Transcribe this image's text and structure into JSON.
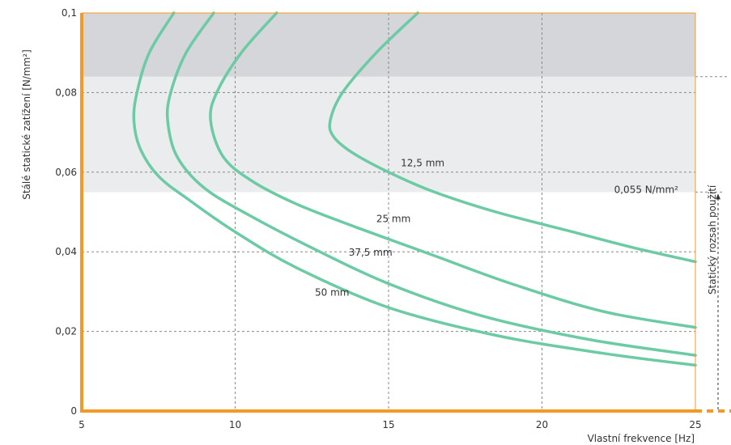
{
  "chart_data": {
    "type": "line",
    "xlabel": "Vlastní frekvence [Hz]",
    "ylabel": "Stálé statické zatížení [N/mm²]",
    "xlim": [
      5,
      25
    ],
    "ylim": [
      0,
      0.1
    ],
    "xticks": [
      {
        "value": 5,
        "label": "5"
      },
      {
        "value": 10,
        "label": "10"
      },
      {
        "value": 15,
        "label": "15"
      },
      {
        "value": 20,
        "label": "20"
      },
      {
        "value": 25,
        "label": "25"
      }
    ],
    "yticks": [
      {
        "value": 0,
        "label": "0"
      },
      {
        "value": 0.02,
        "label": "0,02"
      },
      {
        "value": 0.04,
        "label": "0,04"
      },
      {
        "value": 0.06,
        "label": "0,06"
      },
      {
        "value": 0.08,
        "label": "0,08"
      },
      {
        "value": 0.1,
        "label": "0,1"
      }
    ],
    "grid": true,
    "bands": [
      {
        "from": 0.055,
        "to": 0.084,
        "color": "#ebecee"
      },
      {
        "from": 0.084,
        "to": 0.1,
        "color": "#d4d6d9"
      }
    ],
    "annotations": {
      "threshold_label": "0,055 N/mm²",
      "threshold_value": 0.055,
      "range_label": "Statický rozsah použití"
    },
    "colors": {
      "curve": "#6ccba4",
      "axis": "#f39a26",
      "grid": "#888888"
    },
    "series": [
      {
        "name": "12,5 mm",
        "label_at": {
          "x": 15.4,
          "y": 0.0615
        },
        "points": [
          [
            15.95,
            0.1
          ],
          [
            14.6,
            0.09
          ],
          [
            13.5,
            0.08
          ],
          [
            13.1,
            0.073
          ],
          [
            13.2,
            0.069
          ],
          [
            13.8,
            0.065
          ],
          [
            15.0,
            0.06
          ],
          [
            16.5,
            0.055
          ],
          [
            18.5,
            0.05
          ],
          [
            21.0,
            0.045
          ],
          [
            23.0,
            0.041
          ],
          [
            25.0,
            0.0375
          ]
        ]
      },
      {
        "name": "25 mm",
        "label_at": {
          "x": 14.6,
          "y": 0.0475
        },
        "points": [
          [
            11.35,
            0.1
          ],
          [
            10.2,
            0.09
          ],
          [
            9.4,
            0.08
          ],
          [
            9.2,
            0.073
          ],
          [
            9.6,
            0.064
          ],
          [
            10.5,
            0.058
          ],
          [
            12.0,
            0.052
          ],
          [
            14.0,
            0.046
          ],
          [
            16.5,
            0.039
          ],
          [
            19.0,
            0.032
          ],
          [
            22.0,
            0.025
          ],
          [
            25.0,
            0.021
          ]
        ]
      },
      {
        "name": "37,5 mm",
        "label_at": {
          "x": 13.7,
          "y": 0.039
        },
        "points": [
          [
            9.3,
            0.1
          ],
          [
            8.4,
            0.09
          ],
          [
            7.9,
            0.08
          ],
          [
            7.8,
            0.073
          ],
          [
            8.1,
            0.064
          ],
          [
            9.0,
            0.056
          ],
          [
            10.5,
            0.049
          ],
          [
            12.5,
            0.041
          ],
          [
            15.0,
            0.032
          ],
          [
            18.0,
            0.024
          ],
          [
            21.5,
            0.018
          ],
          [
            25.0,
            0.014
          ]
        ]
      },
      {
        "name": "50 mm",
        "label_at": {
          "x": 12.6,
          "y": 0.029
        },
        "points": [
          [
            8.0,
            0.1
          ],
          [
            7.2,
            0.09
          ],
          [
            6.8,
            0.08
          ],
          [
            6.7,
            0.073
          ],
          [
            6.9,
            0.066
          ],
          [
            7.5,
            0.059
          ],
          [
            8.5,
            0.053
          ],
          [
            10.0,
            0.045
          ],
          [
            12.0,
            0.036
          ],
          [
            15.0,
            0.026
          ],
          [
            18.5,
            0.019
          ],
          [
            22.0,
            0.0145
          ],
          [
            25.0,
            0.0115
          ]
        ]
      }
    ]
  }
}
